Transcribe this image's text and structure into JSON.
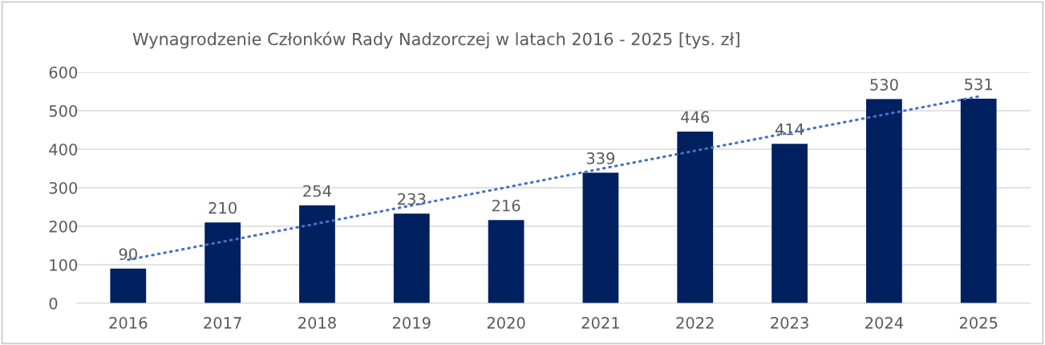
{
  "chart_data": {
    "type": "bar",
    "title": "Wynagrodzenie Członków Rady Nadzorczej w latach 2016 - 2025 [tys. zł]",
    "categories": [
      "2016",
      "2017",
      "2018",
      "2019",
      "2020",
      "2021",
      "2022",
      "2023",
      "2024",
      "2025"
    ],
    "series": [
      {
        "color": "#002060",
        "values": [
          90,
          210,
          254,
          233,
          216,
          339,
          446,
          414,
          530,
          531
        ],
        "value_labels": [
          "90",
          "210",
          "254",
          "233",
          "216",
          "339",
          "446",
          "414",
          "530",
          "531"
        ]
      },
      {
        "type": "line",
        "color": "#4472c4",
        "line_style": "dotted",
        "values": [
          113,
          160,
          207,
          254,
          301,
          349,
          396,
          443,
          490,
          537
        ]
      }
    ],
    "ylim": [
      0,
      600
    ],
    "yticks": [
      0,
      100,
      200,
      300,
      400,
      500,
      600
    ],
    "grid": "y",
    "legend": false
  }
}
